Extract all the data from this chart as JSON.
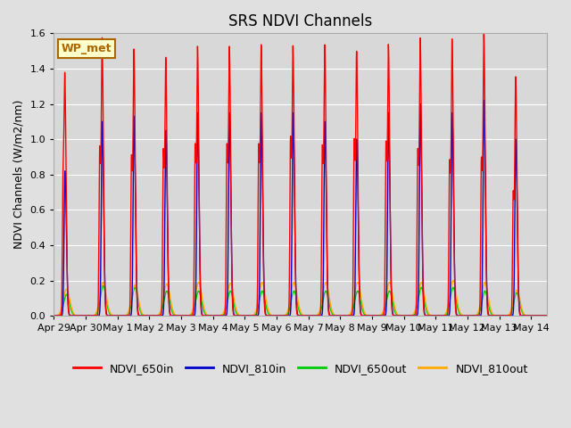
{
  "title": "SRS NDVI Channels",
  "ylabel": "NDVI Channels (W/m2/nm)",
  "ylim": [
    0,
    1.6
  ],
  "yticks": [
    0.0,
    0.2,
    0.4,
    0.6,
    0.8,
    1.0,
    1.2,
    1.4,
    1.6
  ],
  "background_color": "#e0e0e0",
  "plot_bg_color": "#d8d8d8",
  "annotation_text": "WP_met",
  "annotation_bg": "#ffffcc",
  "annotation_border": "#aa6600",
  "legend_entries": [
    "NDVI_650in",
    "NDVI_810in",
    "NDVI_650out",
    "NDVI_810out"
  ],
  "legend_colors": [
    "#ff0000",
    "#0000cc",
    "#00cc00",
    "#ffaa00"
  ],
  "x_tick_labels": [
    "Apr 29",
    "Apr 30",
    "May 1",
    "May 2",
    "May 3",
    "May 4",
    "May 5",
    "May 6",
    "May 7",
    "May 8",
    "May 9",
    "May 10",
    "May 11",
    "May 12",
    "May 13",
    "May 14"
  ],
  "x_tick_positions": [
    0,
    1,
    2,
    3,
    4,
    5,
    6,
    7,
    8,
    9,
    10,
    11,
    12,
    13,
    14,
    15
  ],
  "peaks_650in": [
    1.18,
    1.5,
    1.44,
    1.39,
    1.45,
    1.45,
    1.46,
    1.45,
    1.46,
    1.42,
    1.46,
    1.5,
    1.5,
    1.54,
    1.3
  ],
  "peaks_650in2": [
    1.09,
    1.36,
    1.29,
    1.34,
    1.38,
    1.38,
    1.38,
    1.44,
    1.37,
    1.42,
    1.4,
    1.34,
    1.25,
    1.27,
    1.0
  ],
  "peaks_810in": [
    0.82,
    1.1,
    1.13,
    1.05,
    1.15,
    1.15,
    1.15,
    1.15,
    1.1,
    1.0,
    1.15,
    1.2,
    1.15,
    1.22,
    1.0
  ],
  "peaks_650out": [
    0.12,
    0.17,
    0.16,
    0.14,
    0.14,
    0.14,
    0.14,
    0.14,
    0.14,
    0.14,
    0.14,
    0.16,
    0.16,
    0.14,
    0.13
  ],
  "peaks_810out": [
    0.15,
    0.19,
    0.175,
    0.18,
    0.19,
    0.185,
    0.19,
    0.19,
    0.19,
    0.19,
    0.19,
    0.19,
    0.2,
    0.19,
    0.145
  ],
  "figsize": [
    6.4,
    4.8
  ],
  "dpi": 100
}
